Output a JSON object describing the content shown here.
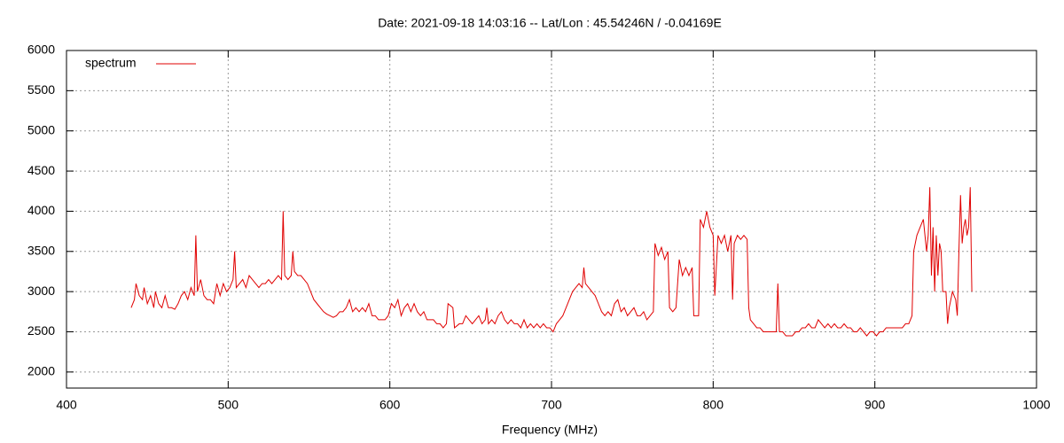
{
  "chart_data": {
    "type": "line",
    "title": "Date: 2021-09-18 14:03:16  --  Lat/Lon : 45.54246N / -0.04169E",
    "x_label": "Frequency (MHz)",
    "xlim": [
      400,
      1000
    ],
    "xticks": [
      400,
      500,
      600,
      700,
      800,
      900,
      1000
    ],
    "ylim": [
      1800,
      6000
    ],
    "yticks": [
      2000,
      2500,
      3000,
      3500,
      4000,
      4500,
      5000,
      5500,
      6000
    ],
    "grid": true,
    "legend": "top-left",
    "x": [
      440,
      442,
      443,
      445,
      447,
      448,
      450,
      452,
      454,
      455,
      457,
      459,
      461,
      463,
      465,
      467,
      469,
      471,
      473,
      475,
      477,
      479,
      480,
      481,
      483,
      485,
      487,
      489,
      491,
      493,
      495,
      497,
      499,
      501,
      503,
      504,
      505,
      507,
      509,
      511,
      513,
      515,
      517,
      519,
      521,
      523,
      525,
      527,
      529,
      531,
      533,
      534,
      535,
      537,
      539,
      540,
      541,
      543,
      545,
      547,
      549,
      551,
      553,
      555,
      557,
      559,
      561,
      563,
      565,
      567,
      569,
      571,
      573,
      575,
      577,
      579,
      581,
      583,
      585,
      587,
      589,
      591,
      593,
      595,
      597,
      599,
      601,
      603,
      605,
      607,
      609,
      611,
      613,
      615,
      617,
      619,
      621,
      623,
      625,
      627,
      629,
      631,
      633,
      635,
      636,
      639,
      640,
      643,
      645,
      647,
      649,
      651,
      653,
      655,
      657,
      659,
      660,
      661,
      663,
      665,
      667,
      669,
      671,
      673,
      675,
      677,
      679,
      681,
      683,
      685,
      687,
      689,
      691,
      693,
      695,
      697,
      699,
      701,
      703,
      705,
      707,
      709,
      711,
      713,
      715,
      717,
      719,
      720,
      721,
      723,
      725,
      727,
      729,
      731,
      733,
      735,
      737,
      739,
      741,
      743,
      745,
      747,
      749,
      751,
      753,
      755,
      757,
      759,
      761,
      763,
      764,
      766,
      768,
      770,
      772,
      773,
      775,
      777,
      779,
      781,
      783,
      785,
      787,
      788,
      791,
      792,
      794,
      796,
      798,
      800,
      801,
      803,
      805,
      807,
      809,
      811,
      812,
      813,
      815,
      817,
      819,
      821,
      822,
      823,
      825,
      827,
      829,
      831,
      833,
      835,
      837,
      839,
      840,
      841,
      843,
      845,
      847,
      849,
      851,
      853,
      855,
      857,
      859,
      861,
      863,
      865,
      867,
      869,
      871,
      873,
      875,
      877,
      879,
      881,
      883,
      885,
      887,
      889,
      891,
      893,
      895,
      897,
      899,
      901,
      903,
      905,
      907,
      909,
      911,
      913,
      915,
      917,
      919,
      921,
      923,
      924,
      926,
      928,
      930,
      932,
      933,
      934,
      935,
      936,
      937,
      938,
      939,
      940,
      941,
      942,
      944,
      945,
      946,
      948,
      950,
      951,
      952,
      953,
      954,
      955,
      956,
      957,
      958,
      959,
      960
    ],
    "series": [
      {
        "name": "spectrum",
        "color": "#e00000",
        "values": [
          2800,
          2900,
          3100,
          2950,
          2900,
          3050,
          2850,
          2950,
          2800,
          3000,
          2850,
          2800,
          2950,
          2800,
          2800,
          2780,
          2850,
          2950,
          3000,
          2900,
          3050,
          2950,
          3700,
          3000,
          3150,
          2950,
          2900,
          2900,
          2850,
          3100,
          2950,
          3100,
          3000,
          3050,
          3150,
          3500,
          3050,
          3100,
          3150,
          3050,
          3200,
          3150,
          3100,
          3050,
          3100,
          3100,
          3150,
          3100,
          3150,
          3200,
          3150,
          4000,
          3200,
          3150,
          3200,
          3500,
          3250,
          3200,
          3200,
          3150,
          3100,
          3000,
          2900,
          2850,
          2800,
          2750,
          2720,
          2700,
          2680,
          2700,
          2750,
          2750,
          2800,
          2900,
          2750,
          2800,
          2750,
          2800,
          2750,
          2850,
          2700,
          2700,
          2650,
          2650,
          2650,
          2700,
          2850,
          2800,
          2900,
          2700,
          2800,
          2850,
          2750,
          2850,
          2750,
          2700,
          2750,
          2650,
          2650,
          2650,
          2600,
          2600,
          2550,
          2600,
          2850,
          2800,
          2550,
          2600,
          2600,
          2700,
          2650,
          2600,
          2650,
          2700,
          2600,
          2650,
          2800,
          2600,
          2650,
          2600,
          2700,
          2750,
          2650,
          2600,
          2650,
          2600,
          2600,
          2550,
          2650,
          2550,
          2600,
          2550,
          2600,
          2550,
          2600,
          2550,
          2550,
          2500,
          2600,
          2650,
          2700,
          2800,
          2900,
          3000,
          3050,
          3100,
          3050,
          3300,
          3100,
          3050,
          3000,
          2950,
          2850,
          2750,
          2700,
          2750,
          2700,
          2850,
          2900,
          2750,
          2800,
          2700,
          2750,
          2800,
          2700,
          2700,
          2750,
          2650,
          2700,
          2750,
          3600,
          3450,
          3550,
          3400,
          3500,
          2800,
          2750,
          2800,
          3400,
          3200,
          3300,
          3200,
          3300,
          2700,
          2700,
          3900,
          3800,
          4000,
          3800,
          3700,
          2950,
          3700,
          3600,
          3700,
          3500,
          3700,
          2900,
          3600,
          3700,
          3650,
          3700,
          3650,
          2800,
          2650,
          2600,
          2550,
          2550,
          2500,
          2500,
          2500,
          2500,
          2500,
          3100,
          2500,
          2500,
          2450,
          2450,
          2450,
          2500,
          2500,
          2550,
          2550,
          2600,
          2550,
          2550,
          2650,
          2600,
          2550,
          2600,
          2550,
          2600,
          2550,
          2550,
          2600,
          2550,
          2550,
          2500,
          2500,
          2550,
          2500,
          2450,
          2500,
          2500,
          2450,
          2500,
          2500,
          2550,
          2550,
          2550,
          2550,
          2550,
          2550,
          2600,
          2600,
          2700,
          3500,
          3700,
          3800,
          3900,
          3500,
          3700,
          4300,
          3200,
          3800,
          3000,
          3700,
          3200,
          3600,
          3500,
          3000,
          3000,
          2600,
          2800,
          3000,
          2900,
          2700,
          3500,
          4200,
          3600,
          3800,
          3900,
          3700,
          3800,
          4300,
          3000
        ]
      }
    ]
  }
}
